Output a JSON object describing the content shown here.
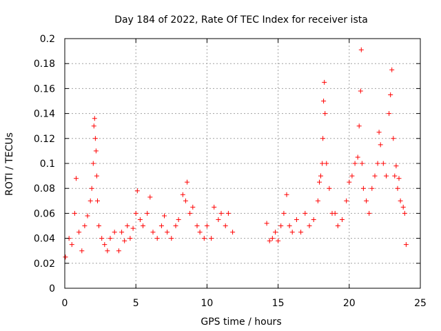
{
  "chart_data": {
    "type": "scatter",
    "title": "Day 184 of 2022, Rate Of TEC Index for receiver ista",
    "xlabel": "GPS time / hours",
    "ylabel": "ROTI / TECUs",
    "xlim": [
      0,
      25
    ],
    "ylim": [
      0,
      0.2
    ],
    "x_ticks": [
      0,
      5,
      10,
      15,
      20,
      25
    ],
    "x_tick_labels": [
      "0",
      "5",
      "10",
      "15",
      "20",
      "25"
    ],
    "y_ticks": [
      0,
      0.02,
      0.04,
      0.06,
      0.08,
      0.1,
      0.12,
      0.14,
      0.16,
      0.18,
      0.2
    ],
    "y_tick_labels": [
      "0",
      "0.02",
      "0.04",
      "0.06",
      "0.08",
      "0.1",
      "0.12",
      "0.14",
      "0.16",
      "0.18",
      "0.2"
    ],
    "grid": true,
    "marker": "+",
    "colors": {
      "points": "#ff0000",
      "axes": "#000000",
      "grid": "#a0a0a0"
    },
    "data_gap_hours": [
      11.9,
      14.1
    ],
    "series": [
      {
        "x": [
          0.05,
          0.3,
          0.5,
          0.7,
          0.8,
          1.0,
          1.2,
          1.4,
          1.6,
          1.8,
          1.9,
          2.0,
          2.05,
          2.1,
          2.15,
          2.2,
          2.25,
          2.3,
          2.4,
          2.6,
          2.8,
          3.0,
          3.2,
          3.5,
          3.8,
          4.0,
          4.2,
          4.4,
          4.6,
          4.8,
          5.0,
          5.1,
          5.3,
          5.5,
          5.8,
          6.0,
          6.2,
          6.5,
          6.8,
          7.0,
          7.2,
          7.5,
          7.8,
          8.0,
          8.3,
          8.5,
          8.6,
          8.8,
          9.0,
          9.3,
          9.5,
          9.8,
          10.0,
          10.3,
          10.5,
          10.8,
          11.0,
          11.3,
          11.5,
          11.8,
          14.2,
          14.4,
          14.6,
          14.8,
          15.0,
          15.2,
          15.4,
          15.6,
          15.8,
          16.0,
          16.3,
          16.6,
          16.9,
          17.2,
          17.5,
          17.8,
          17.9,
          18.0,
          18.1,
          18.15,
          18.2,
          18.25,
          18.3,
          18.4,
          18.6,
          18.8,
          19.0,
          19.2,
          19.5,
          19.8,
          20.0,
          20.2,
          20.4,
          20.6,
          20.7,
          20.8,
          20.85,
          20.9,
          21.0,
          21.2,
          21.4,
          21.6,
          21.8,
          22.0,
          22.1,
          22.2,
          22.4,
          22.6,
          22.8,
          22.9,
          23.0,
          23.1,
          23.2,
          23.3,
          23.4,
          23.5,
          23.6,
          23.8,
          23.9,
          24.0
        ],
        "y": [
          0.025,
          0.04,
          0.035,
          0.06,
          0.088,
          0.045,
          0.03,
          0.05,
          0.058,
          0.07,
          0.08,
          0.1,
          0.13,
          0.136,
          0.12,
          0.11,
          0.09,
          0.07,
          0.05,
          0.04,
          0.035,
          0.03,
          0.04,
          0.045,
          0.03,
          0.045,
          0.038,
          0.05,
          0.04,
          0.048,
          0.06,
          0.078,
          0.055,
          0.05,
          0.06,
          0.073,
          0.045,
          0.04,
          0.05,
          0.058,
          0.045,
          0.04,
          0.05,
          0.055,
          0.075,
          0.07,
          0.085,
          0.06,
          0.065,
          0.05,
          0.045,
          0.04,
          0.05,
          0.04,
          0.065,
          0.055,
          0.06,
          0.05,
          0.06,
          0.045,
          0.052,
          0.038,
          0.04,
          0.045,
          0.038,
          0.05,
          0.06,
          0.075,
          0.05,
          0.045,
          0.055,
          0.045,
          0.06,
          0.05,
          0.055,
          0.07,
          0.085,
          0.09,
          0.1,
          0.12,
          0.15,
          0.165,
          0.14,
          0.1,
          0.08,
          0.06,
          0.06,
          0.05,
          0.055,
          0.07,
          0.085,
          0.09,
          0.1,
          0.105,
          0.13,
          0.158,
          0.191,
          0.1,
          0.08,
          0.07,
          0.06,
          0.08,
          0.09,
          0.1,
          0.125,
          0.115,
          0.1,
          0.09,
          0.14,
          0.155,
          0.175,
          0.12,
          0.09,
          0.098,
          0.08,
          0.088,
          0.07,
          0.065,
          0.06,
          0.035
        ]
      }
    ]
  }
}
